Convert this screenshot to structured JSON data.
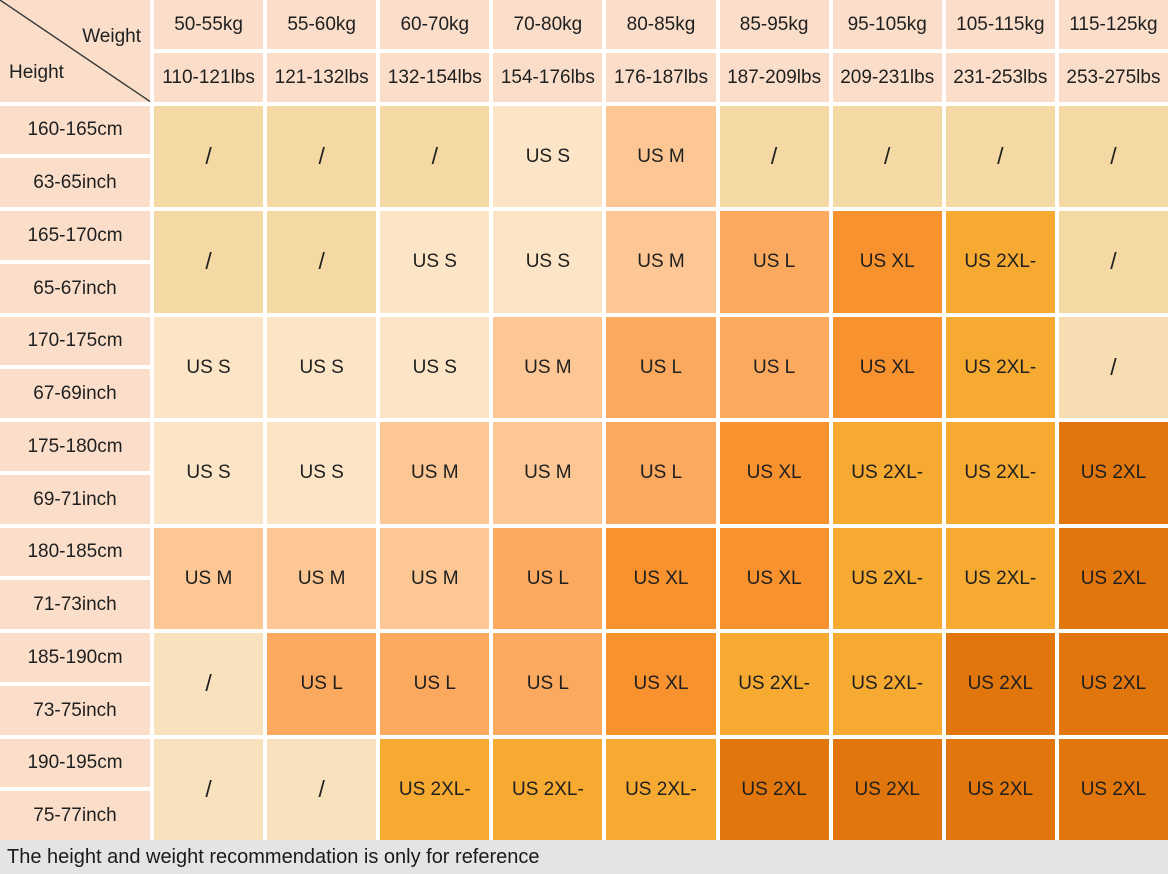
{
  "chart_data": {
    "type": "table",
    "corner": {
      "col_axis": "Weight",
      "row_axis": "Height"
    },
    "col_headers_kg": [
      "50-55kg",
      "55-60kg",
      "60-70kg",
      "70-80kg",
      "80-85kg",
      "85-95kg",
      "95-105kg",
      "105-115kg",
      "115-125kg"
    ],
    "col_headers_lbs": [
      "110-121lbs",
      "121-132lbs",
      "132-154lbs",
      "154-176lbs",
      "176-187lbs",
      "187-209lbs",
      "209-231lbs",
      "231-253lbs",
      "253-275lbs"
    ],
    "row_headers_cm": [
      "160-165cm",
      "165-170cm",
      "170-175cm",
      "175-180cm",
      "180-185cm",
      "185-190cm",
      "190-195cm"
    ],
    "row_headers_inch": [
      "63-65inch",
      "65-67inch",
      "67-69inch",
      "69-71inch",
      "71-73inch",
      "73-75inch",
      "75-77inch"
    ],
    "cells": [
      [
        {
          "label": "/",
          "key": "slash_wheat"
        },
        {
          "label": "/",
          "key": "slash_wheat"
        },
        {
          "label": "/",
          "key": "slash_wheat"
        },
        {
          "label": "US S",
          "key": "S"
        },
        {
          "label": "US M",
          "key": "M"
        },
        {
          "label": "/",
          "key": "slash_wheat"
        },
        {
          "label": "/",
          "key": "slash_wheat"
        },
        {
          "label": "/",
          "key": "slash_wheat"
        },
        {
          "label": "/",
          "key": "slash_wheat"
        }
      ],
      [
        {
          "label": "/",
          "key": "slash_wheat"
        },
        {
          "label": "/",
          "key": "slash_wheat"
        },
        {
          "label": "US S",
          "key": "S"
        },
        {
          "label": "US S",
          "key": "S"
        },
        {
          "label": "US M",
          "key": "M"
        },
        {
          "label": "US L",
          "key": "L"
        },
        {
          "label": "US XL",
          "key": "XL"
        },
        {
          "label": "US 2XL-",
          "key": "2XL-"
        },
        {
          "label": "/",
          "key": "slash_wheat"
        }
      ],
      [
        {
          "label": "US S",
          "key": "S"
        },
        {
          "label": "US S",
          "key": "S"
        },
        {
          "label": "US S",
          "key": "S"
        },
        {
          "label": "US M",
          "key": "M"
        },
        {
          "label": "US L",
          "key": "L"
        },
        {
          "label": "US L",
          "key": "L"
        },
        {
          "label": "US XL",
          "key": "XL"
        },
        {
          "label": "US 2XL-",
          "key": "2XL-"
        },
        {
          "label": "/",
          "key": "slash_tan"
        }
      ],
      [
        {
          "label": "US S",
          "key": "S"
        },
        {
          "label": "US S",
          "key": "S"
        },
        {
          "label": "US M",
          "key": "M"
        },
        {
          "label": "US M",
          "key": "M"
        },
        {
          "label": "US L",
          "key": "L"
        },
        {
          "label": "US XL",
          "key": "XL"
        },
        {
          "label": "US 2XL-",
          "key": "2XL-"
        },
        {
          "label": "US 2XL-",
          "key": "2XL-"
        },
        {
          "label": "US 2XL",
          "key": "2XL"
        }
      ],
      [
        {
          "label": "US M",
          "key": "M"
        },
        {
          "label": "US M",
          "key": "M"
        },
        {
          "label": "US M",
          "key": "M"
        },
        {
          "label": "US L",
          "key": "L"
        },
        {
          "label": "US XL",
          "key": "XL"
        },
        {
          "label": "US XL",
          "key": "XL"
        },
        {
          "label": "US 2XL-",
          "key": "2XL-"
        },
        {
          "label": "US 2XL-",
          "key": "2XL-"
        },
        {
          "label": "US 2XL",
          "key": "2XL"
        }
      ],
      [
        {
          "label": "/",
          "key": "slash_cream"
        },
        {
          "label": "US L",
          "key": "L"
        },
        {
          "label": "US L",
          "key": "L"
        },
        {
          "label": "US L",
          "key": "L"
        },
        {
          "label": "US XL",
          "key": "XL"
        },
        {
          "label": "US 2XL-",
          "key": "2XL-"
        },
        {
          "label": "US 2XL-",
          "key": "2XL-"
        },
        {
          "label": "US 2XL",
          "key": "2XL"
        },
        {
          "label": "US 2XL",
          "key": "2XL"
        }
      ],
      [
        {
          "label": "/",
          "key": "slash_cream"
        },
        {
          "label": "/",
          "key": "slash_cream"
        },
        {
          "label": "US 2XL-",
          "key": "2XL-"
        },
        {
          "label": "US 2XL-",
          "key": "2XL-"
        },
        {
          "label": "US 2XL-",
          "key": "2XL-"
        },
        {
          "label": "US 2XL",
          "key": "2XL"
        },
        {
          "label": "US 2XL",
          "key": "2XL"
        },
        {
          "label": "US 2XL",
          "key": "2XL"
        },
        {
          "label": "US 2XL",
          "key": "2XL"
        }
      ]
    ],
    "note": "The height and weight recommendation is only for reference"
  },
  "colors": {
    "header_bg": "#FADECA",
    "slash_wheat": "#F5D9A4",
    "slash_tan": "#F7DDB2",
    "slash_cream": "#F8E1BD",
    "S": "#FCE5C7",
    "M": "#FCC794",
    "L": "#FAA95E",
    "XL": "#F8922E",
    "2XL-": "#F6AA32",
    "2XL": "#E1760C",
    "note_bg": "#E4E4E4",
    "diagonal_line": "#3A3A3A"
  }
}
